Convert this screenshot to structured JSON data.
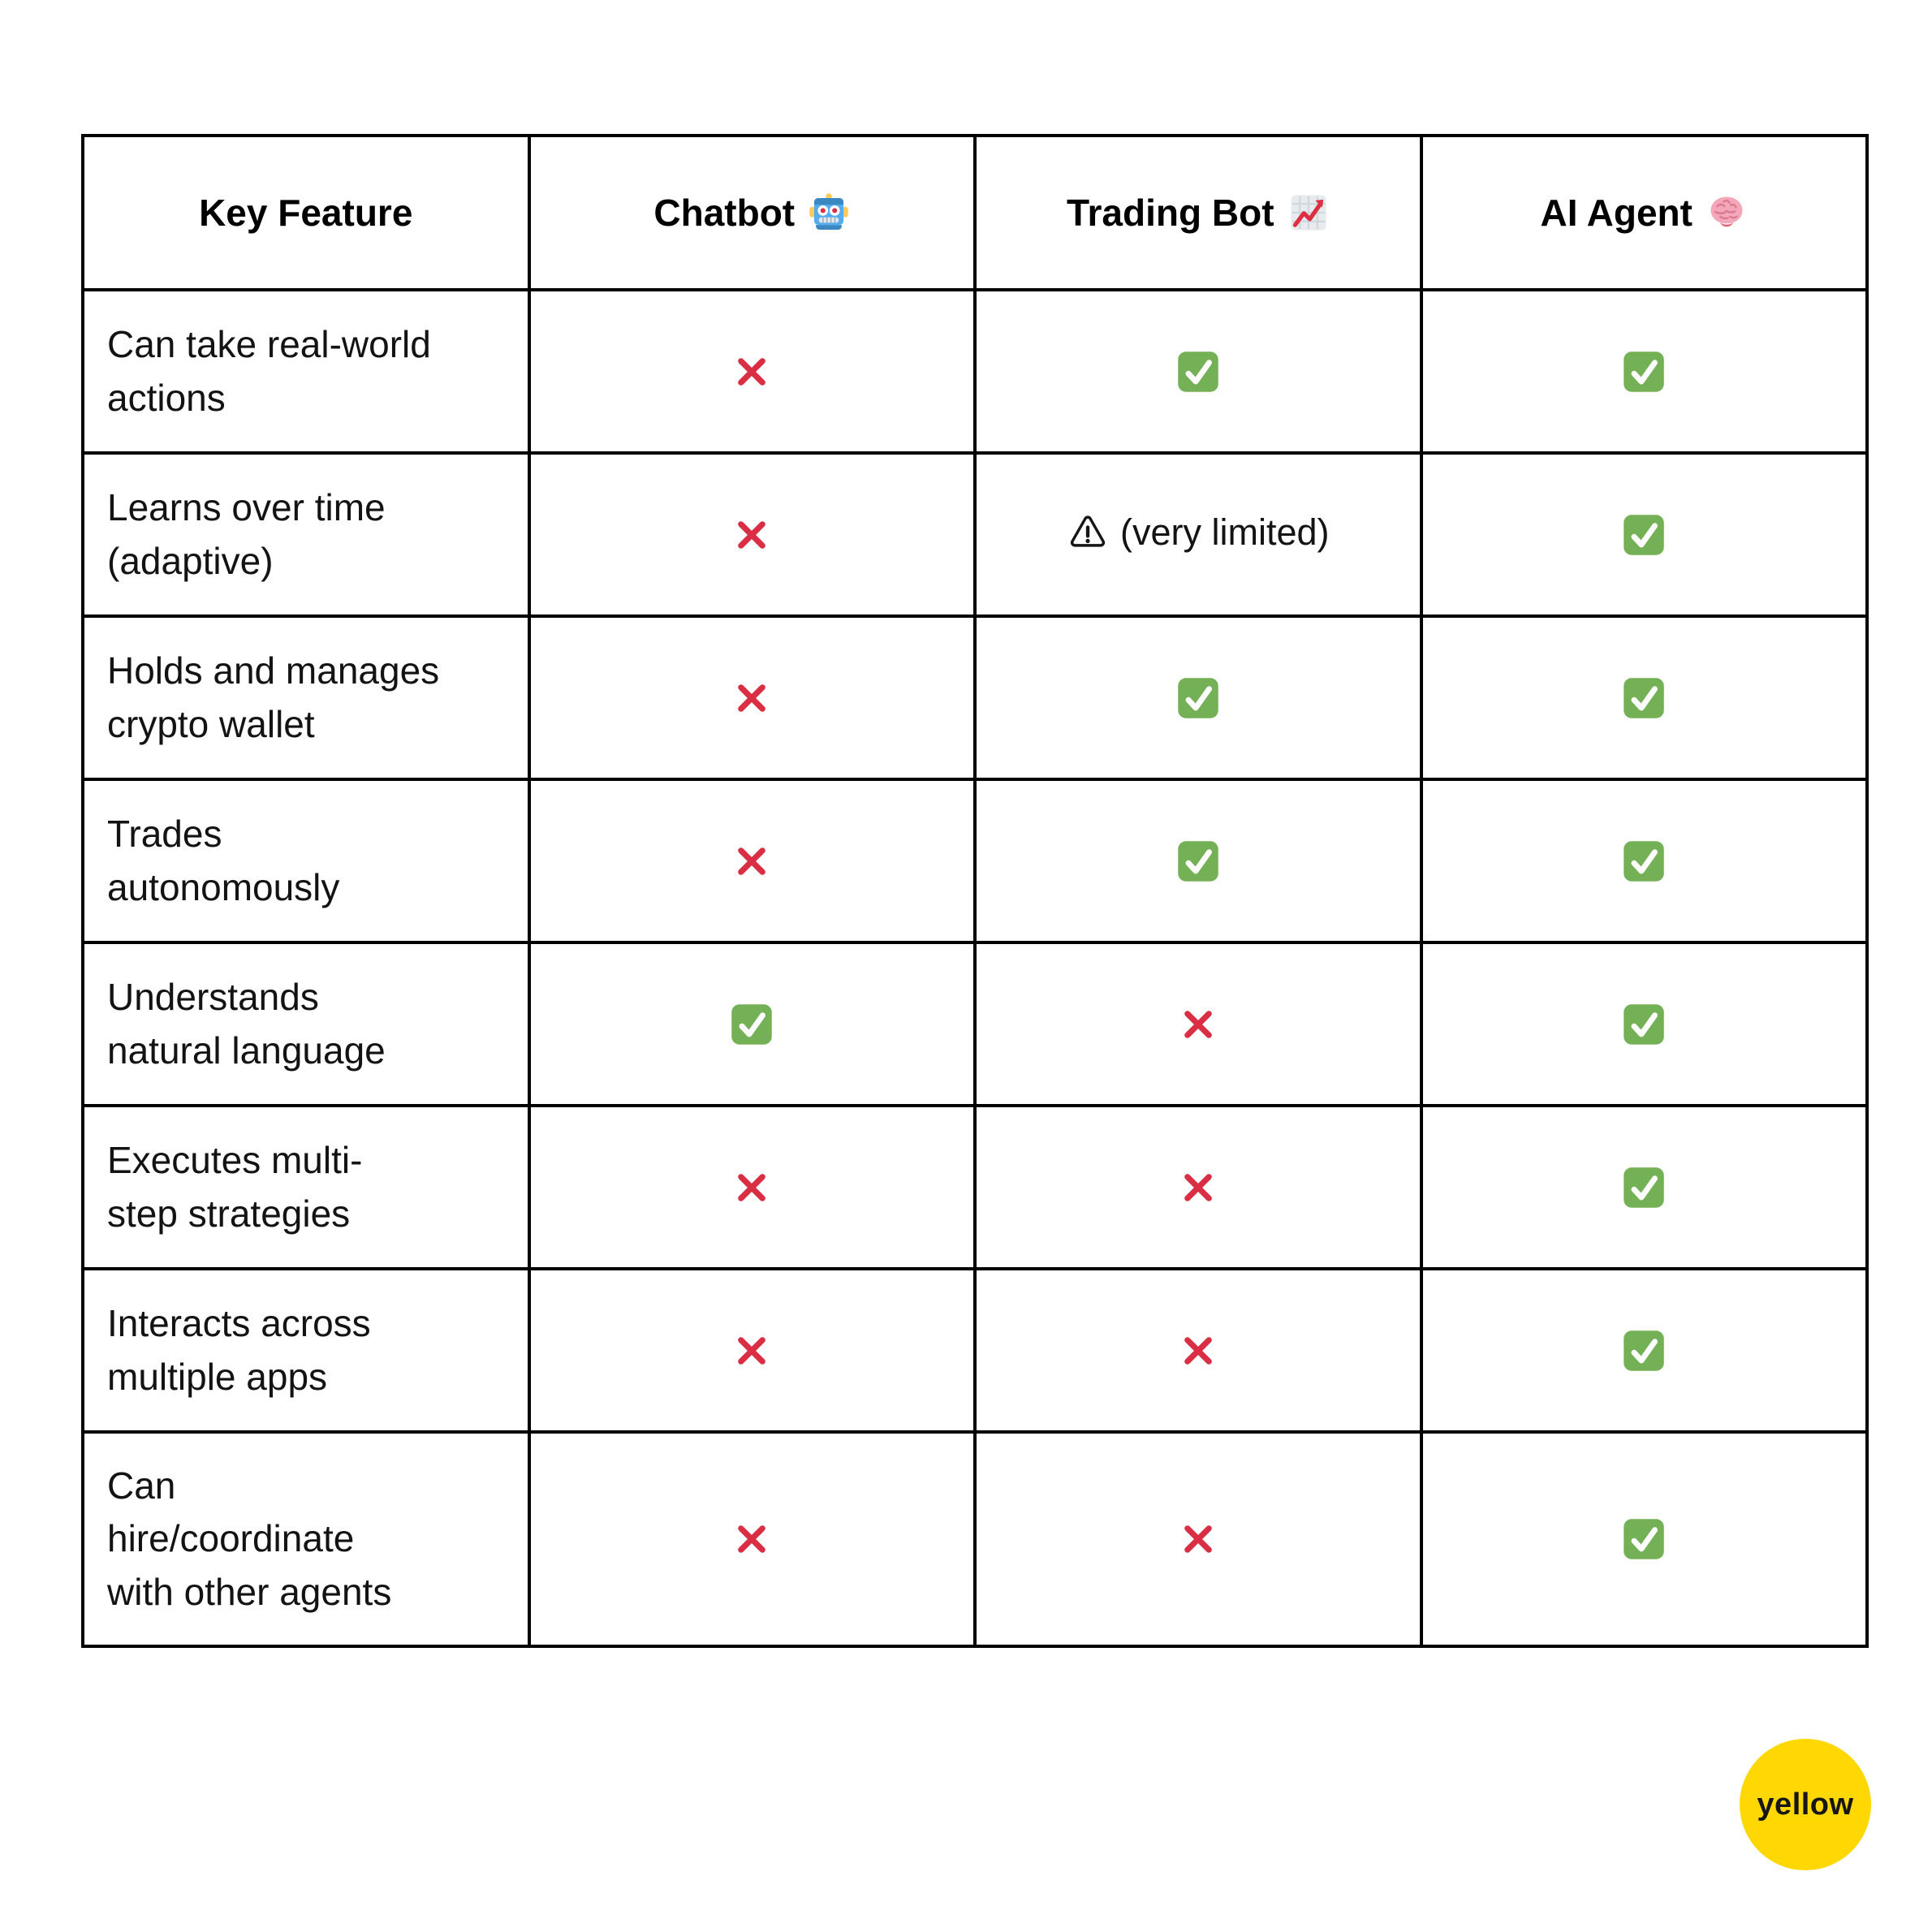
{
  "table": {
    "headers": [
      {
        "label": "Key Feature",
        "icon": null
      },
      {
        "label": "Chatbot",
        "icon": "robot-icon"
      },
      {
        "label": "Trading Bot",
        "icon": "chart-increasing-icon"
      },
      {
        "label": "AI Agent",
        "icon": "brain-icon"
      }
    ],
    "warn_text": "(very limited)",
    "rows": [
      {
        "feature": "Can take real-world\nactions",
        "cells": [
          "cross",
          "check",
          "check"
        ]
      },
      {
        "feature": "Learns over time\n(adaptive)",
        "cells": [
          "cross",
          "warn",
          "check"
        ]
      },
      {
        "feature": "Holds and manages\ncrypto wallet",
        "cells": [
          "cross",
          "check",
          "check"
        ]
      },
      {
        "feature": "Trades\nautonomously",
        "cells": [
          "cross",
          "check",
          "check"
        ]
      },
      {
        "feature": "Understands\nnatural language",
        "cells": [
          "check",
          "cross",
          "check"
        ]
      },
      {
        "feature": "Executes multi-\nstep strategies",
        "cells": [
          "cross",
          "cross",
          "check"
        ]
      },
      {
        "feature": "Interacts across\nmultiple apps",
        "cells": [
          "cross",
          "cross",
          "check"
        ]
      },
      {
        "feature": "Can\nhire/coordinate\nwith other agents",
        "cells": [
          "cross",
          "cross",
          "check"
        ]
      }
    ]
  },
  "marks": {
    "cross_color": "#D92E43",
    "check_bg_color": "#74B055",
    "check_tick_color": "#FFFFFF",
    "warn_outline_color": "#161616"
  },
  "icons": {
    "chatbot": "robot-icon",
    "trading_bot": "chart-increasing-icon",
    "ai_agent": "brain-icon",
    "cross": "cross-mark-icon",
    "check": "check-mark-icon",
    "warning": "warning-triangle-icon"
  },
  "logo": {
    "text": "yellow",
    "bg_color": "#FFD703"
  },
  "chart_data": {
    "type": "table",
    "title": "Key Feature comparison: Chatbot vs Trading Bot vs AI Agent",
    "columns": [
      "Key Feature",
      "Chatbot",
      "Trading Bot",
      "AI Agent"
    ],
    "rows": [
      [
        "Can take real-world actions",
        "no",
        "yes",
        "yes"
      ],
      [
        "Learns over time (adaptive)",
        "no",
        "very limited",
        "yes"
      ],
      [
        "Holds and manages crypto wallet",
        "no",
        "yes",
        "yes"
      ],
      [
        "Trades autonomously",
        "no",
        "yes",
        "yes"
      ],
      [
        "Understands natural language",
        "yes",
        "no",
        "yes"
      ],
      [
        "Executes multi-step strategies",
        "no",
        "no",
        "yes"
      ],
      [
        "Interacts across multiple apps",
        "no",
        "no",
        "yes"
      ],
      [
        "Can hire/coordinate with other agents",
        "no",
        "no",
        "yes"
      ]
    ],
    "legend": {
      "yes": "green check",
      "no": "red cross",
      "very limited": "warning triangle"
    }
  }
}
